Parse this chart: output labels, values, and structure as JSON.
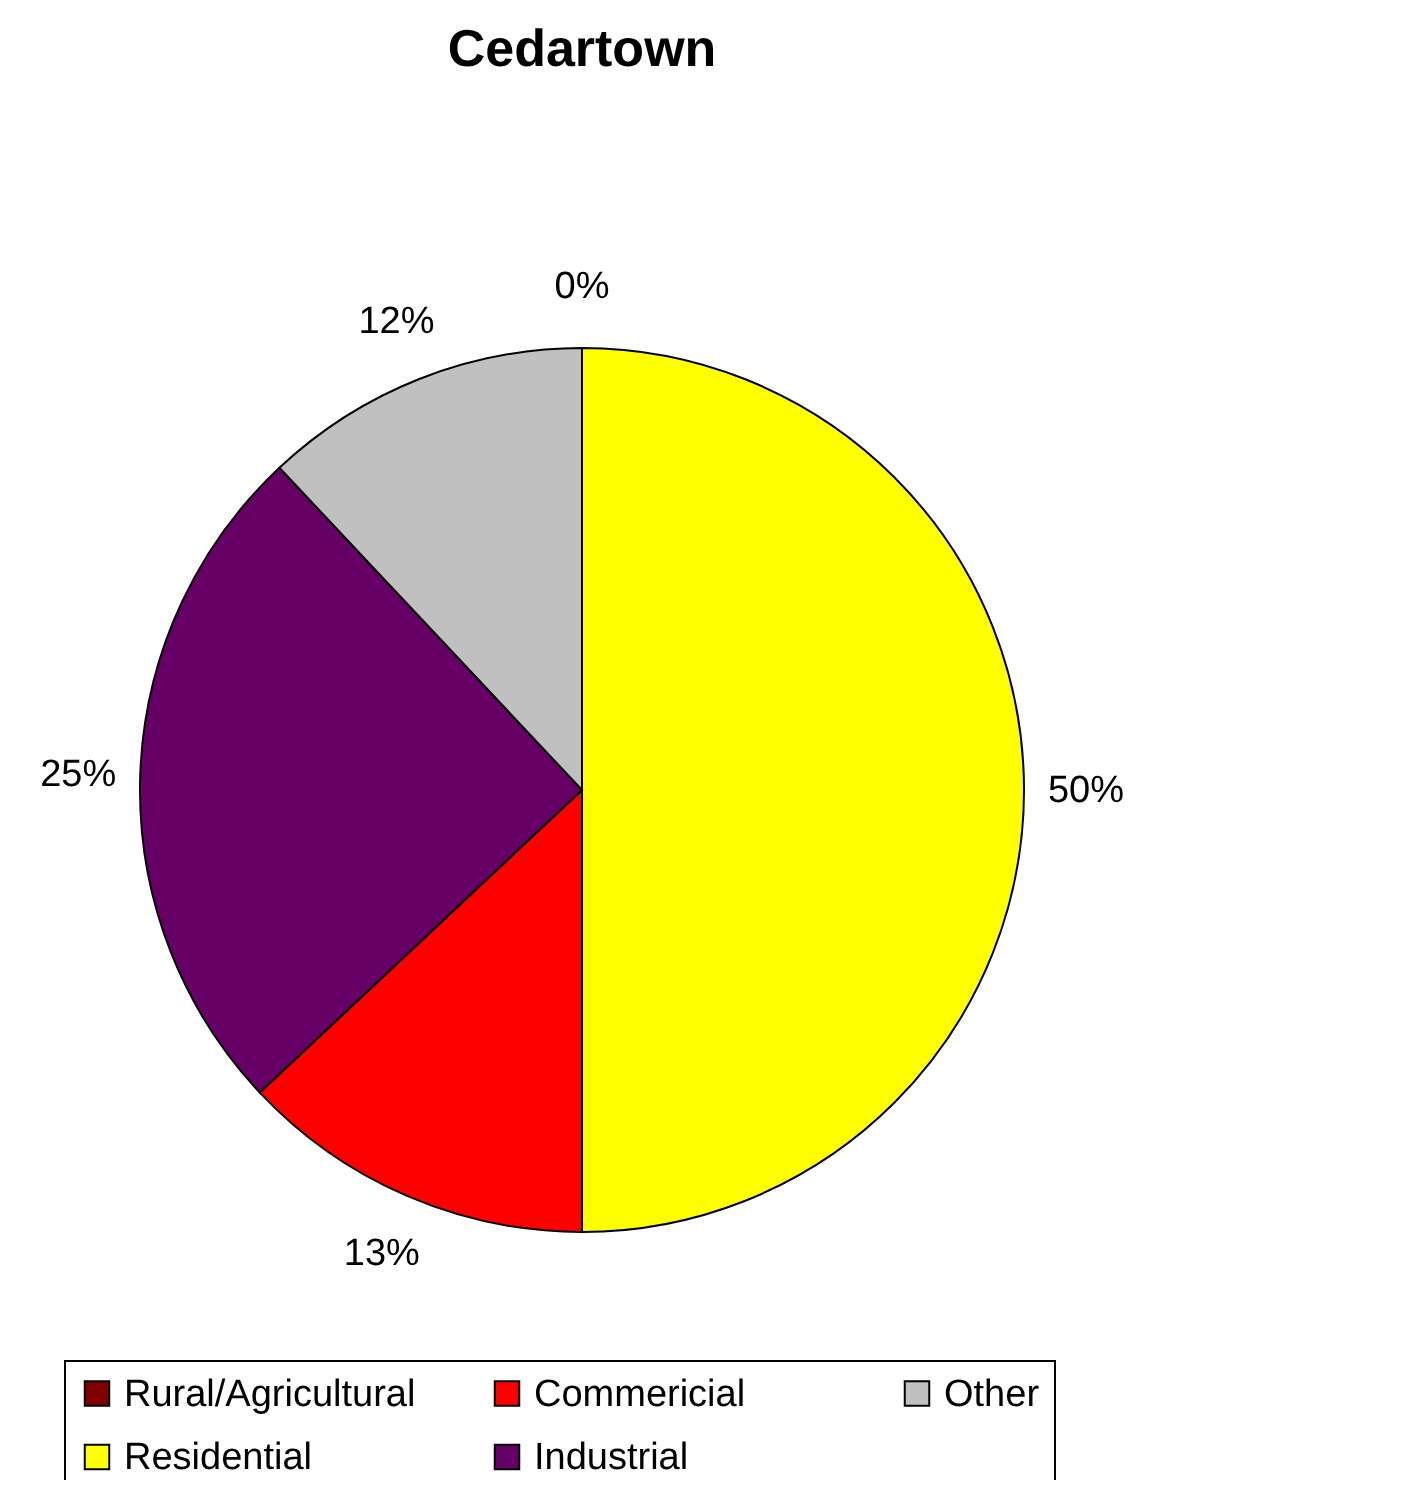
{
  "chart_data": {
    "type": "pie",
    "title": "Cedartown",
    "categories": [
      "Rural/Agricultural",
      "Residential",
      "Commericial",
      "Industrial",
      "Other"
    ],
    "values": [
      0,
      50,
      13,
      25,
      12
    ],
    "colors": [
      "#800000",
      "#ffff00",
      "#ff0000",
      "#660066",
      "#c0c0c0"
    ],
    "value_labels": [
      "0%",
      "50%",
      "13%",
      "25%",
      "12%"
    ],
    "legend": "bottom"
  }
}
